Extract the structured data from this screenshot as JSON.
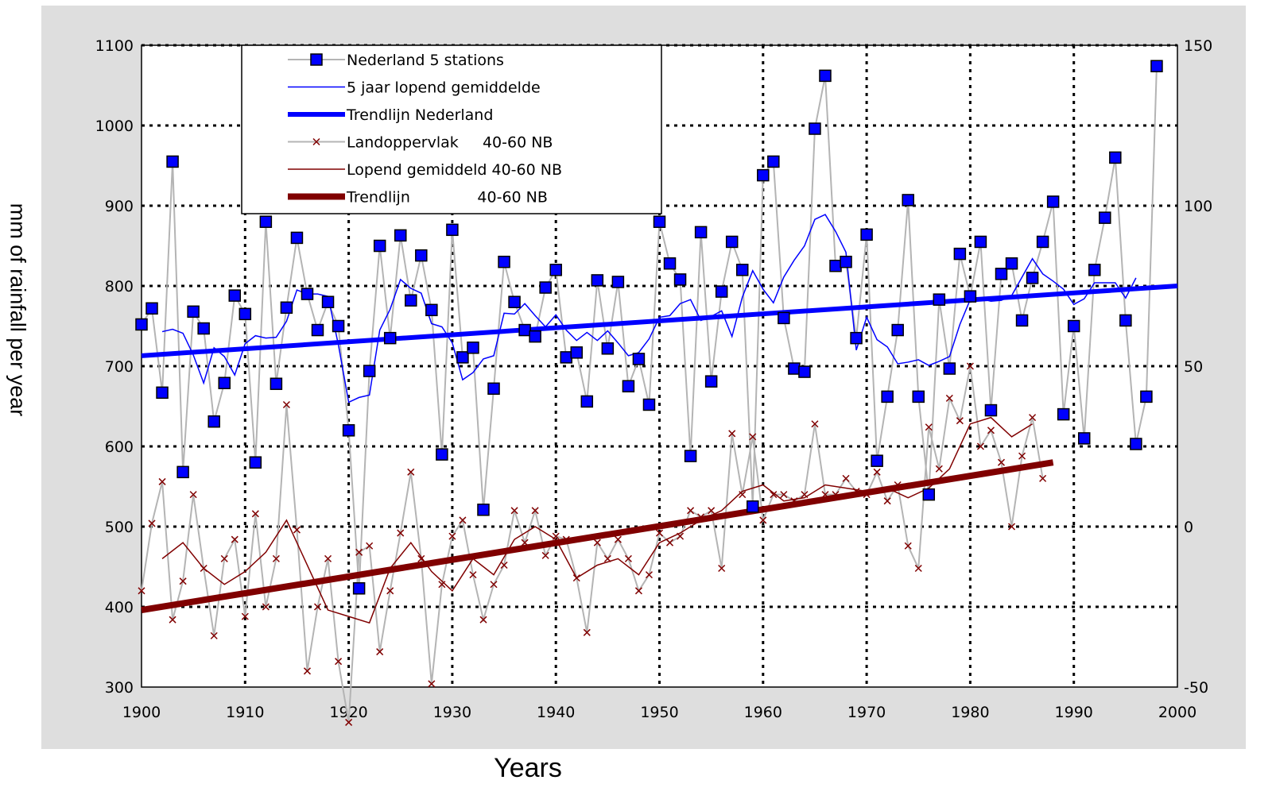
{
  "chart_data": {
    "type": "line",
    "xlabel": "Years",
    "ylabel": "mm of rainfall per year",
    "xlim": [
      1900,
      2000
    ],
    "ylim": [
      300,
      1100
    ],
    "x_ticks": [
      1900,
      1910,
      1920,
      1930,
      1940,
      1950,
      1960,
      1970,
      1980,
      1990,
      2000
    ],
    "y_ticks": [
      300,
      400,
      500,
      600,
      700,
      800,
      900,
      1000,
      1100
    ],
    "y2lim": [
      -50,
      150
    ],
    "y2_ticks": [
      -50,
      0,
      50,
      100,
      150
    ],
    "grid": true,
    "legend_position": "top-left",
    "legend_entries": [
      "Nederland 5 stations",
      "5 jaar lopend gemiddelde",
      "Trendlijn Nederland",
      "Landoppervlak     40-60 NB",
      "Lopend gemiddeld 40-60 NB",
      "Trendlijn              40-60 NB"
    ],
    "series": [
      {
        "name": "Nederland 5 stations",
        "axis": "left",
        "color": "#0000ff",
        "x": [
          1900,
          1901,
          1902,
          1903,
          1904,
          1905,
          1906,
          1907,
          1908,
          1909,
          1910,
          1911,
          1912,
          1913,
          1914,
          1915,
          1916,
          1917,
          1918,
          1919,
          1920,
          1921,
          1922,
          1923,
          1924,
          1925,
          1926,
          1927,
          1928,
          1929,
          1930,
          1931,
          1932,
          1933,
          1934,
          1935,
          1936,
          1937,
          1938,
          1939,
          1940,
          1941,
          1942,
          1943,
          1944,
          1945,
          1946,
          1947,
          1948,
          1949,
          1950,
          1951,
          1952,
          1953,
          1954,
          1955,
          1956,
          1957,
          1958,
          1959,
          1960,
          1961,
          1962,
          1963,
          1964,
          1965,
          1966,
          1967,
          1968,
          1969,
          1970,
          1971,
          1972,
          1973,
          1974,
          1975,
          1976,
          1977,
          1978,
          1979,
          1980,
          1981,
          1982,
          1983,
          1984,
          1985,
          1986,
          1987,
          1988,
          1989,
          1990,
          1991,
          1992,
          1993,
          1994,
          1995,
          1996,
          1997,
          1998
        ],
        "y": [
          752,
          772,
          667,
          955,
          568,
          768,
          747,
          631,
          679,
          788,
          765,
          580,
          880,
          678,
          773,
          860,
          790,
          745,
          780,
          750,
          620,
          423,
          694,
          850,
          735,
          863,
          782,
          838,
          770,
          590,
          870,
          711,
          723,
          521,
          672,
          830,
          780,
          745,
          737,
          798,
          820,
          711,
          717,
          656,
          807,
          722,
          805,
          675,
          709,
          652,
          880,
          828,
          808,
          588,
          867,
          681,
          793,
          855,
          820,
          525,
          938,
          955,
          760,
          697,
          693,
          996,
          1062,
          825,
          830,
          735,
          864,
          582,
          662,
          745,
          907,
          662,
          540,
          783,
          697,
          840,
          787,
          855,
          645,
          815,
          828,
          757,
          810,
          855,
          905,
          640,
          750,
          610,
          820,
          885,
          960,
          757,
          603,
          662,
          1074
        ]
      },
      {
        "name": "5 jaar lopend gemiddelde",
        "axis": "left",
        "color": "#0000ff",
        "x": [
          1902,
          1903,
          1904,
          1905,
          1906,
          1907,
          1908,
          1909,
          1910,
          1911,
          1912,
          1913,
          1914,
          1915,
          1916,
          1917,
          1918,
          1919,
          1920,
          1921,
          1922,
          1923,
          1924,
          1925,
          1926,
          1927,
          1928,
          1929,
          1930,
          1931,
          1932,
          1933,
          1934,
          1935,
          1936,
          1937,
          1938,
          1939,
          1940,
          1941,
          1942,
          1943,
          1944,
          1945,
          1946,
          1947,
          1948,
          1949,
          1950,
          1951,
          1952,
          1953,
          1954,
          1955,
          1956,
          1957,
          1958,
          1959,
          1960,
          1961,
          1962,
          1963,
          1964,
          1965,
          1966,
          1967,
          1968,
          1969,
          1970,
          1971,
          1972,
          1973,
          1974,
          1975,
          1976,
          1977,
          1978,
          1979,
          1980,
          1981,
          1982,
          1983,
          1984,
          1985,
          1986,
          1987,
          1988,
          1989,
          1990,
          1991,
          1992,
          1993,
          1994,
          1995,
          1996
        ],
        "y": [
          743,
          746,
          741,
          714,
          679,
          723,
          712,
          689,
          728,
          738,
          735,
          736,
          756,
          795,
          790,
          790,
          787,
          727,
          655,
          661,
          664,
          745,
          771,
          808,
          797,
          791,
          753,
          749,
          729,
          683,
          692,
          709,
          713,
          766,
          765,
          778,
          763,
          749,
          764,
          745,
          732,
          742,
          732,
          744,
          729,
          713,
          717,
          734,
          761,
          763,
          778,
          783,
          757,
          762,
          769,
          737,
          786,
          819,
          796,
          779,
          811,
          832,
          850,
          883,
          889,
          868,
          842,
          720,
          761,
          733,
          724,
          703,
          705,
          708,
          701,
          706,
          712,
          752,
          783,
          784,
          781,
          782,
          788,
          811,
          834,
          815,
          806,
          796,
          777,
          784,
          804,
          804,
          804,
          785,
          810
        ]
      },
      {
        "name": "Trendlijn Nederland",
        "axis": "left",
        "color": "#0000ff",
        "x": [
          1900,
          2000
        ],
        "y": [
          713,
          800
        ]
      },
      {
        "name": "Landoppervlak     40-60 NB",
        "axis": "right",
        "color": "#800000",
        "x": [
          1900,
          1901,
          1902,
          1903,
          1904,
          1905,
          1906,
          1907,
          1908,
          1909,
          1910,
          1911,
          1912,
          1913,
          1914,
          1915,
          1916,
          1917,
          1918,
          1919,
          1920,
          1921,
          1922,
          1923,
          1924,
          1925,
          1926,
          1927,
          1928,
          1929,
          1930,
          1931,
          1932,
          1933,
          1934,
          1935,
          1936,
          1937,
          1938,
          1939,
          1940,
          1941,
          1942,
          1943,
          1944,
          1945,
          1946,
          1947,
          1948,
          1949,
          1950,
          1951,
          1952,
          1953,
          1954,
          1955,
          1956,
          1957,
          1958,
          1959,
          1960,
          1961,
          1962,
          1963,
          1964,
          1965,
          1966,
          1967,
          1968,
          1969,
          1970,
          1971,
          1972,
          1973,
          1974,
          1975,
          1976,
          1977,
          1978,
          1979,
          1980,
          1981,
          1982,
          1983,
          1984,
          1985,
          1986,
          1987
        ],
        "y": [
          -20,
          1,
          14,
          -29,
          -17,
          10,
          -13,
          -34,
          -10,
          -4,
          -28,
          4,
          -25,
          -10,
          38,
          -1,
          -45,
          -25,
          -10,
          -42,
          -61,
          -8,
          -6,
          -39,
          -20,
          -2,
          17,
          -10,
          -49,
          -18,
          -3,
          2,
          -15,
          -29,
          -18,
          -12,
          5,
          -5,
          5,
          -9,
          -3,
          -4,
          -16,
          -33,
          -5,
          -10,
          -4,
          -10,
          -20,
          -15,
          -2,
          -5,
          -3,
          5,
          3,
          5,
          -13,
          29,
          10,
          28,
          2,
          10,
          10,
          8,
          10,
          32,
          10,
          10,
          15,
          11,
          10,
          17,
          8,
          13,
          -6,
          -13,
          31,
          18,
          40,
          33,
          50,
          25,
          30,
          20,
          0,
          22,
          34,
          15
        ]
      },
      {
        "name": "Lopend gemiddeld 40-60 NB",
        "axis": "right",
        "color": "#800000",
        "x": [
          1902,
          1904,
          1906,
          1908,
          1910,
          1912,
          1914,
          1916,
          1918,
          1920,
          1922,
          1924,
          1926,
          1928,
          1930,
          1932,
          1934,
          1936,
          1938,
          1940,
          1942,
          1944,
          1946,
          1948,
          1950,
          1952,
          1954,
          1956,
          1958,
          1960,
          1962,
          1964,
          1966,
          1968,
          1970,
          1972,
          1974,
          1976,
          1978,
          1980,
          1982,
          1984,
          1986
        ],
        "y": [
          -10,
          -5,
          -13,
          -18,
          -14,
          -8,
          2,
          -12,
          -26,
          -28,
          -30,
          -13,
          -5,
          -14,
          -20,
          -10,
          -15,
          -4,
          0,
          -4,
          -16,
          -12,
          -10,
          -15,
          -5,
          -2,
          2,
          5,
          11,
          13,
          8,
          9,
          13,
          12,
          11,
          12,
          9,
          12,
          18,
          32,
          34,
          28,
          32
        ]
      },
      {
        "name": "Trendlijn              40-60 NB",
        "axis": "right",
        "color": "#800000",
        "x": [
          1900,
          1988
        ],
        "y": [
          -26,
          20
        ]
      }
    ]
  }
}
